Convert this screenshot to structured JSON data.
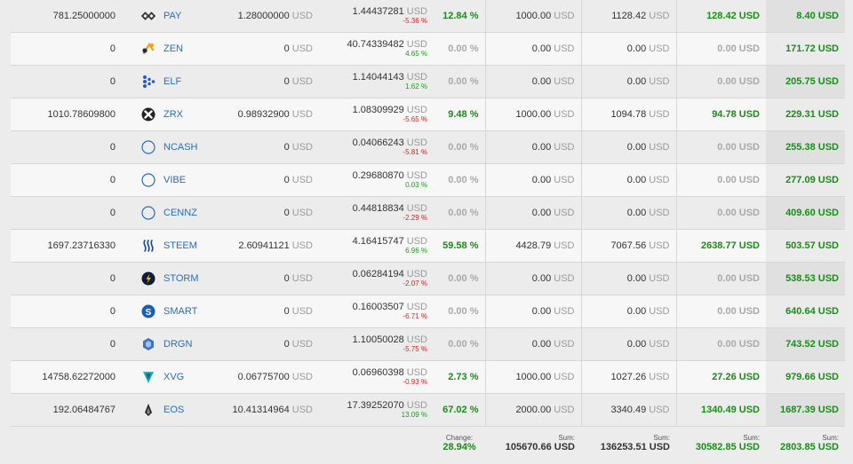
{
  "currency": "USD",
  "rows": [
    {
      "amount": "781.25000000",
      "icon": "pay-icon",
      "symbol": "PAY",
      "buy_price": "1.28000000",
      "current_price": "1.44437281",
      "price_change": "-5.36 %",
      "price_change_dir": "neg",
      "change": "12.84 %",
      "change_active": true,
      "invested": "1000.00",
      "value": "1128.42",
      "profit": "128.42 USD",
      "profit_active": true,
      "total": "8.40 USD"
    },
    {
      "amount": "0",
      "icon": "zen-icon",
      "symbol": "ZEN",
      "buy_price": "0",
      "current_price": "40.74339482",
      "price_change": "4.65 %",
      "price_change_dir": "pos",
      "change": "0.00 %",
      "change_active": false,
      "invested": "0.00",
      "value": "0.00",
      "profit": "0.00 USD",
      "profit_active": false,
      "total": "171.72 USD"
    },
    {
      "amount": "0",
      "icon": "elf-icon",
      "symbol": "ELF",
      "buy_price": "0",
      "current_price": "1.14044143",
      "price_change": "1.62 %",
      "price_change_dir": "pos",
      "change": "0.00 %",
      "change_active": false,
      "invested": "0.00",
      "value": "0.00",
      "profit": "0.00 USD",
      "profit_active": false,
      "total": "205.75 USD"
    },
    {
      "amount": "1010.78609800",
      "icon": "zrx-icon",
      "symbol": "ZRX",
      "buy_price": "0.98932900",
      "current_price": "1.08309929",
      "price_change": "-5.65 %",
      "price_change_dir": "neg",
      "change": "9.48 %",
      "change_active": true,
      "invested": "1000.00",
      "value": "1094.78",
      "profit": "94.78 USD",
      "profit_active": true,
      "total": "229.31 USD"
    },
    {
      "amount": "0",
      "icon": "ncash-icon",
      "symbol": "NCASH",
      "buy_price": "0",
      "current_price": "0.04066243",
      "price_change": "-5.81 %",
      "price_change_dir": "neg",
      "change": "0.00 %",
      "change_active": false,
      "invested": "0.00",
      "value": "0.00",
      "profit": "0.00 USD",
      "profit_active": false,
      "total": "255.38 USD"
    },
    {
      "amount": "0",
      "icon": "vibe-icon",
      "symbol": "VIBE",
      "buy_price": "0",
      "current_price": "0.29680870",
      "price_change": "0.03 %",
      "price_change_dir": "pos",
      "change": "0.00 %",
      "change_active": false,
      "invested": "0.00",
      "value": "0.00",
      "profit": "0.00 USD",
      "profit_active": false,
      "total": "277.09 USD"
    },
    {
      "amount": "0",
      "icon": "cennz-icon",
      "symbol": "CENNZ",
      "buy_price": "0",
      "current_price": "0.44818834",
      "price_change": "-2.29 %",
      "price_change_dir": "neg",
      "change": "0.00 %",
      "change_active": false,
      "invested": "0.00",
      "value": "0.00",
      "profit": "0.00 USD",
      "profit_active": false,
      "total": "409.60 USD"
    },
    {
      "amount": "1697.23716330",
      "icon": "steem-icon",
      "symbol": "STEEM",
      "buy_price": "2.60941121",
      "current_price": "4.16415747",
      "price_change": "6.96 %",
      "price_change_dir": "pos",
      "change": "59.58 %",
      "change_active": true,
      "invested": "4428.79",
      "value": "7067.56",
      "profit": "2638.77 USD",
      "profit_active": true,
      "total": "503.57 USD"
    },
    {
      "amount": "0",
      "icon": "storm-icon",
      "symbol": "STORM",
      "buy_price": "0",
      "current_price": "0.06284194",
      "price_change": "-2.07 %",
      "price_change_dir": "neg",
      "change": "0.00 %",
      "change_active": false,
      "invested": "0.00",
      "value": "0.00",
      "profit": "0.00 USD",
      "profit_active": false,
      "total": "538.53 USD"
    },
    {
      "amount": "0",
      "icon": "smart-icon",
      "symbol": "SMART",
      "buy_price": "0",
      "current_price": "0.16003507",
      "price_change": "-6.71 %",
      "price_change_dir": "neg",
      "change": "0.00 %",
      "change_active": false,
      "invested": "0.00",
      "value": "0.00",
      "profit": "0.00 USD",
      "profit_active": false,
      "total": "640.64 USD"
    },
    {
      "amount": "0",
      "icon": "drgn-icon",
      "symbol": "DRGN",
      "buy_price": "0",
      "current_price": "1.10050028",
      "price_change": "-5.75 %",
      "price_change_dir": "neg",
      "change": "0.00 %",
      "change_active": false,
      "invested": "0.00",
      "value": "0.00",
      "profit": "0.00 USD",
      "profit_active": false,
      "total": "743.52 USD"
    },
    {
      "amount": "14758.62272000",
      "icon": "xvg-icon",
      "symbol": "XVG",
      "buy_price": "0.06775700",
      "current_price": "0.06960398",
      "price_change": "-0.93 %",
      "price_change_dir": "neg",
      "change": "2.73 %",
      "change_active": true,
      "invested": "1000.00",
      "value": "1027.26",
      "profit": "27.26 USD",
      "profit_active": true,
      "total": "979.66 USD"
    },
    {
      "amount": "192.06484767",
      "icon": "eos-icon",
      "symbol": "EOS",
      "buy_price": "10.41314964",
      "current_price": "17.39252070",
      "price_change": "13.09 %",
      "price_change_dir": "pos",
      "change": "67.02 %",
      "change_active": true,
      "invested": "2000.00",
      "value": "3340.49",
      "profit": "1340.49 USD",
      "profit_active": true,
      "total": "1687.39 USD"
    }
  ],
  "summary": {
    "change_label": "Change:",
    "change_value": "28.94%",
    "invested_label": "Sum:",
    "invested_value": "105670.66 USD",
    "value_label": "Sum:",
    "value_value": "136253.51 USD",
    "profit_label": "Sum:",
    "profit_value": "30582.85 USD",
    "total_label": "Sum:",
    "total_value": "2803.85 USD"
  },
  "colors": {
    "link": "#2a6ebb",
    "positive": "#1a8c1a",
    "negative": "#e02020",
    "muted": "#a9a9a9"
  }
}
